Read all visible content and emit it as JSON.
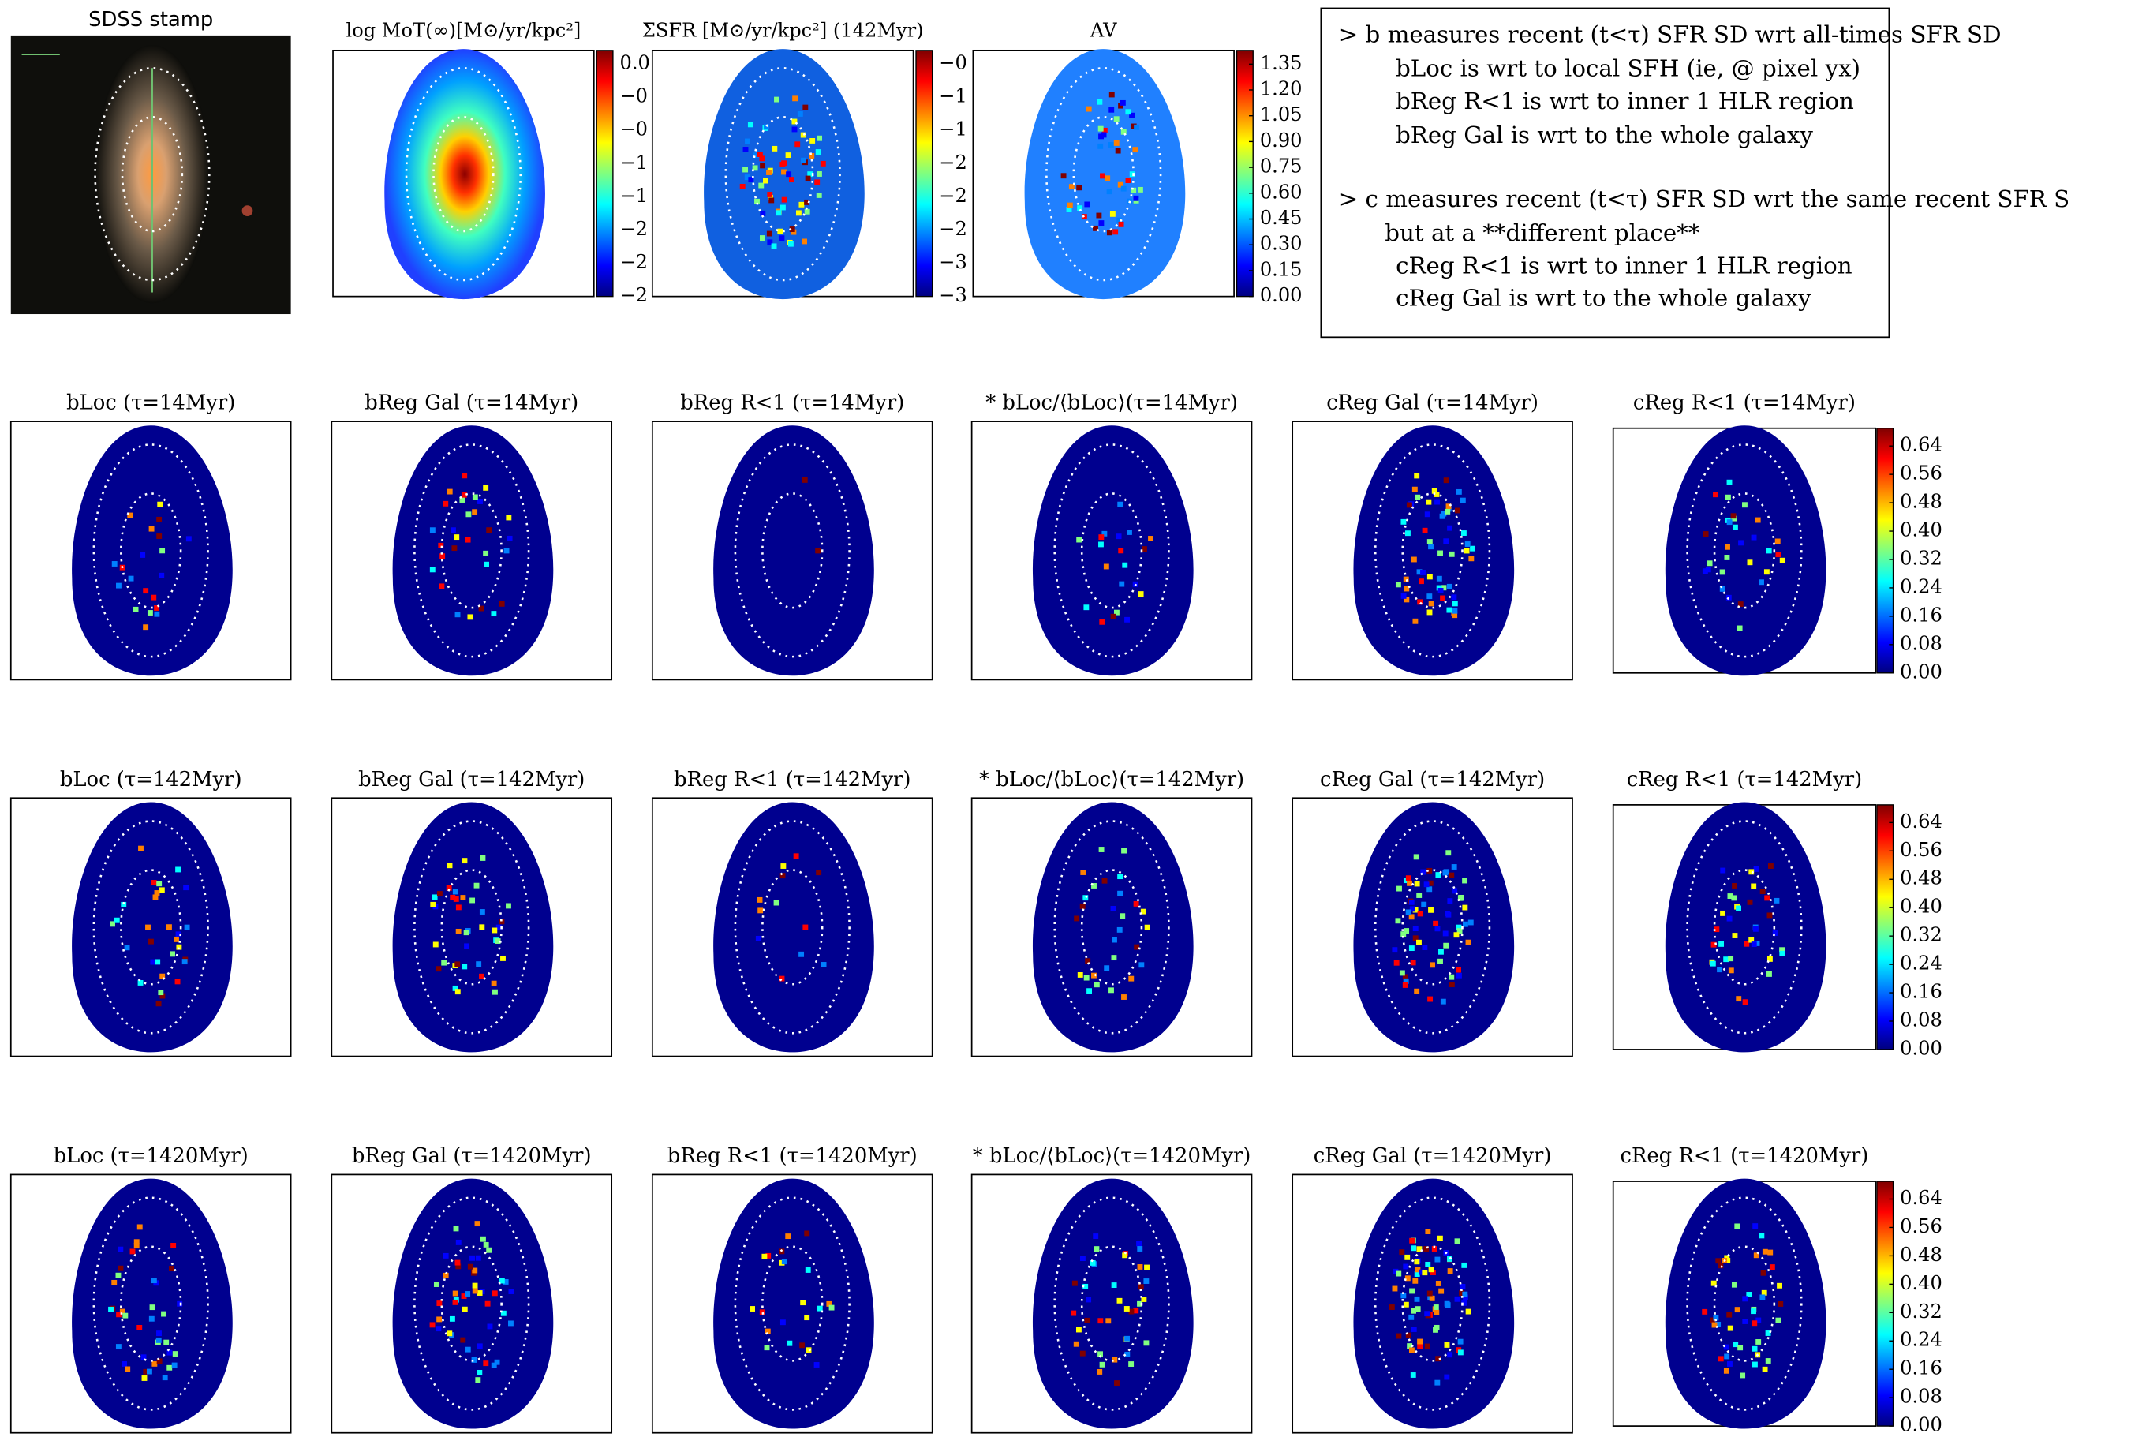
{
  "top_panels": [
    {
      "title": "SDSS stamp"
    },
    {
      "title": "log MoT(∞)[M⊙/yr/kpc²]",
      "colorbar_labels": [
        "0.0",
        "−0",
        "−0",
        "−1",
        "−1",
        "−2",
        "−2",
        "−2"
      ]
    },
    {
      "title": "ΣSFR [M⊙/yr/kpc²] (142Myr)",
      "colorbar_labels": [
        "−0",
        "−1",
        "−1",
        "−2",
        "−2",
        "−2",
        "−3",
        "−3"
      ]
    },
    {
      "title": "AV",
      "colorbar": {
        "clim": [
          0,
          1.43
        ],
        "ticks": [
          {
            "value": 1.35,
            "label": "1.35"
          },
          {
            "value": 1.2,
            "label": "1.20"
          },
          {
            "value": 1.05,
            "label": "1.05"
          },
          {
            "value": 0.9,
            "label": "0.90"
          },
          {
            "value": 0.75,
            "label": "0.75"
          },
          {
            "value": 0.6,
            "label": "0.60"
          },
          {
            "value": 0.45,
            "label": "0.45"
          },
          {
            "value": 0.3,
            "label": "0.30"
          },
          {
            "value": 0.15,
            "label": "0.15"
          },
          {
            "value": 0,
            "label": "0.00"
          }
        ]
      }
    }
  ],
  "notes": {
    "lines": [
      "> b measures recent (t<τ) SFR SD wrt all-times SFR SD",
      "bLoc is wrt to local SFH (ie, @ pixel yx)",
      "bReg R<1 is wrt to inner 1 HLR region",
      "bReg Gal is wrt to the whole galaxy",
      "> c measures recent (t<τ) SFR SD wrt the same recent SFR S",
      "but at a **different place**",
      "cReg R<1 is wrt to inner 1 HLR region",
      "cReg Gal is wrt to the whole galaxy"
    ]
  },
  "rows": [
    {
      "titles": [
        "bLoc (τ=14Myr)",
        "bReg Gal (τ=14Myr)",
        "bReg R<1 (τ=14Myr)",
        "* bLoc/⟨bLoc⟩(τ=14Myr)",
        "cReg Gal (τ=14Myr)",
        "cReg R<1 (τ=14Myr)"
      ],
      "colorbar": {
        "clim": [
          0,
          0.69
        ],
        "ticks": [
          {
            "value": 0.64,
            "label": "0.64"
          },
          {
            "value": 0.56,
            "label": "0.56"
          },
          {
            "value": 0.48,
            "label": "0.48"
          },
          {
            "value": 0.4,
            "label": "0.40"
          },
          {
            "value": 0.32,
            "label": "0.32"
          },
          {
            "value": 0.24,
            "label": "0.24"
          },
          {
            "value": 0.16,
            "label": "0.16"
          },
          {
            "value": 0.08,
            "label": "0.08"
          },
          {
            "value": 0,
            "label": "0.00"
          }
        ]
      }
    },
    {
      "titles": [
        "bLoc (τ=142Myr)",
        "bReg Gal (τ=142Myr)",
        "bReg R<1 (τ=142Myr)",
        "* bLoc/⟨bLoc⟩(τ=142Myr)",
        "cReg Gal (τ=142Myr)",
        "cReg R<1 (τ=142Myr)"
      ],
      "colorbar": {
        "clim": [
          0,
          0.69
        ],
        "ticks": [
          {
            "value": 0.64,
            "label": "0.64"
          },
          {
            "value": 0.56,
            "label": "0.56"
          },
          {
            "value": 0.48,
            "label": "0.48"
          },
          {
            "value": 0.4,
            "label": "0.40"
          },
          {
            "value": 0.32,
            "label": "0.32"
          },
          {
            "value": 0.24,
            "label": "0.24"
          },
          {
            "value": 0.16,
            "label": "0.16"
          },
          {
            "value": 0.08,
            "label": "0.08"
          },
          {
            "value": 0,
            "label": "0.00"
          }
        ]
      }
    },
    {
      "titles": [
        "bLoc (τ=1420Myr)",
        "bReg Gal (τ=1420Myr)",
        "bReg R<1 (τ=1420Myr)",
        "* bLoc/⟨bLoc⟩(τ=1420Myr)",
        "cReg Gal (τ=1420Myr)",
        "cReg R<1 (τ=1420Myr)"
      ],
      "colorbar": {
        "clim": [
          0,
          0.69
        ],
        "ticks": [
          {
            "value": 0.64,
            "label": "0.64"
          },
          {
            "value": 0.56,
            "label": "0.56"
          },
          {
            "value": 0.48,
            "label": "0.48"
          },
          {
            "value": 0.4,
            "label": "0.40"
          },
          {
            "value": 0.32,
            "label": "0.32"
          },
          {
            "value": 0.24,
            "label": "0.24"
          },
          {
            "value": 0.16,
            "label": "0.16"
          },
          {
            "value": 0.08,
            "label": "0.08"
          },
          {
            "value": 0,
            "label": "0.00"
          }
        ]
      }
    }
  ]
}
